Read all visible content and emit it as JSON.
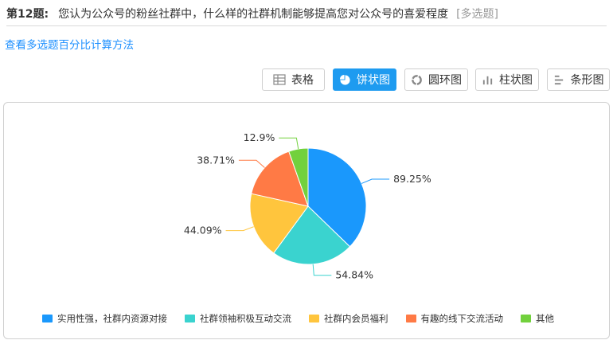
{
  "question": {
    "number": "第12题:",
    "text": "您认为公众号的粉丝社群中，什么样的社群机制能够提高您对公众号的喜爱程度",
    "type": "[多选题]"
  },
  "calc_link": "查看多选题百分比计算方法",
  "toolbar": [
    {
      "label": "表格",
      "icon": "table-icon"
    },
    {
      "label": "饼状图",
      "icon": "pie-chart-icon",
      "active": true
    },
    {
      "label": "圆环图",
      "icon": "donut-chart-icon"
    },
    {
      "label": "柱状图",
      "icon": "bar-chart-icon"
    },
    {
      "label": "条形图",
      "icon": "horizontal-bar-icon"
    }
  ],
  "colors": {
    "accent": "#1e9bf0",
    "series": [
      "#1a98fc",
      "#3ad3cf",
      "#ffc53d",
      "#ff7a45",
      "#72d13d"
    ]
  },
  "chart_data": {
    "type": "pie",
    "categories": [
      "实用性强，社群内资源对接",
      "社群领袖积极互动交流",
      "社群内会员福利",
      "有趣的线下交流活动",
      "其他"
    ],
    "values": [
      89.25,
      54.84,
      44.09,
      38.71,
      12.9
    ],
    "labels": [
      "89.25%",
      "54.84%",
      "44.09%",
      "38.71%",
      "12.9%"
    ],
    "legend_position": "bottom"
  }
}
